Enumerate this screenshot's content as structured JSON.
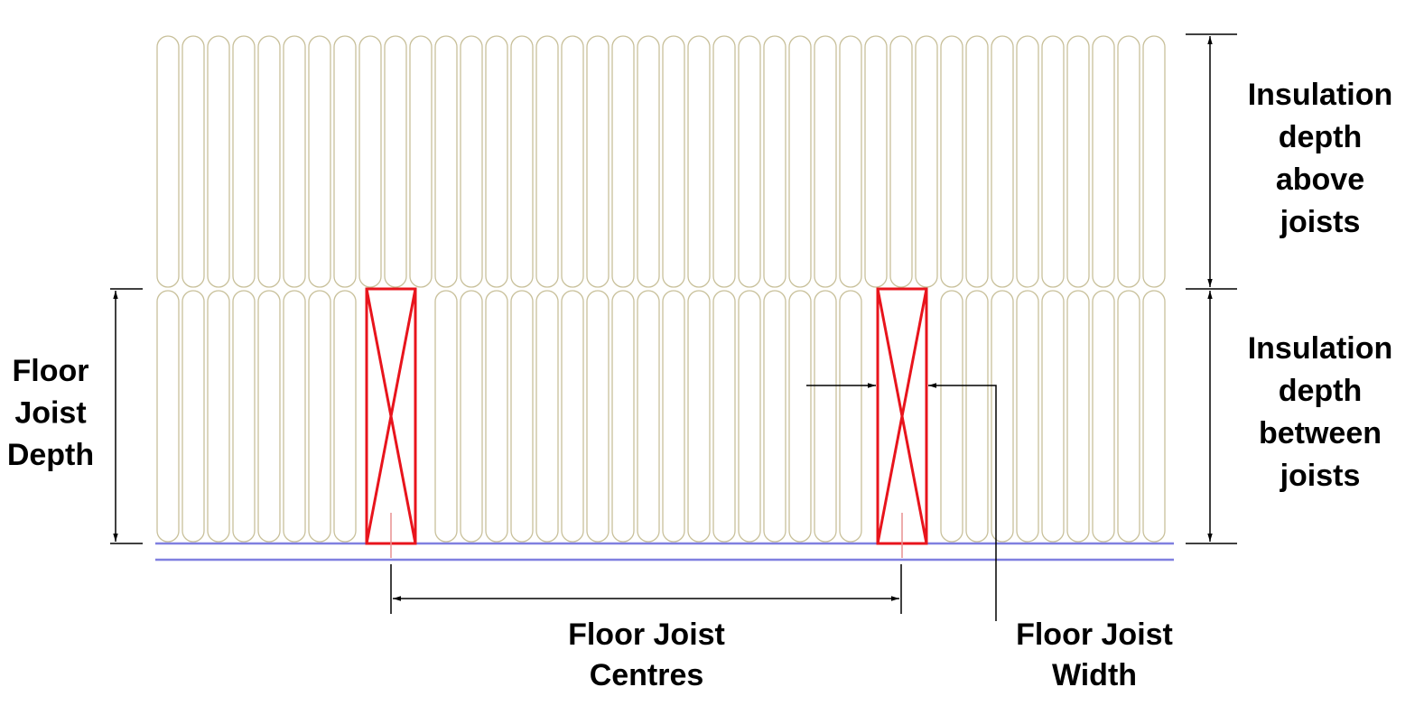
{
  "labels": {
    "insulation_above": [
      "Insulation",
      "depth",
      "above",
      "joists"
    ],
    "insulation_between": [
      "Insulation",
      "depth",
      "between",
      "joists"
    ],
    "joist_depth": [
      "Floor",
      "Joist",
      "Depth"
    ],
    "joist_centres": [
      "Floor Joist",
      "Centres"
    ],
    "joist_width": [
      "Floor Joist",
      "Width"
    ]
  }
}
